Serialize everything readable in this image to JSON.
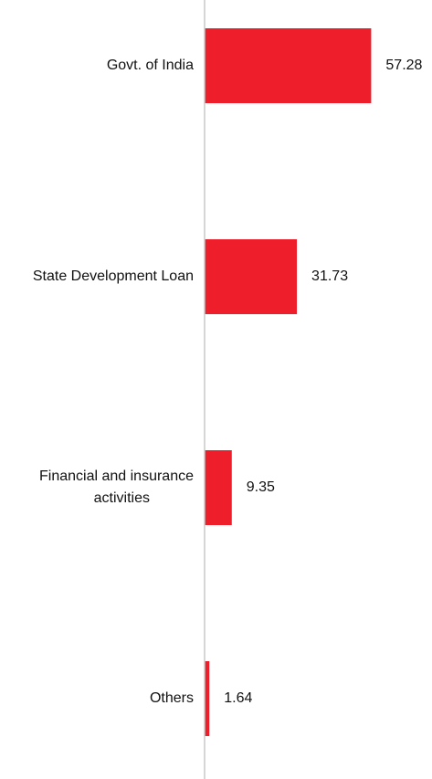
{
  "chart_data": {
    "type": "bar",
    "orientation": "horizontal",
    "categories": [
      [
        "Govt. of India"
      ],
      [
        "State Development Loan"
      ],
      [
        "Financial and insurance",
        "activities"
      ],
      [
        "Others"
      ]
    ],
    "values": [
      57.28,
      31.73,
      9.35,
      1.64
    ],
    "value_labels": [
      "57.28",
      "31.73",
      "9.35",
      "1.64"
    ],
    "xlim": [
      0,
      65
    ],
    "grid": false,
    "colors": {
      "bar": "#ee1f2b",
      "axis": "#c8c8c8"
    }
  }
}
